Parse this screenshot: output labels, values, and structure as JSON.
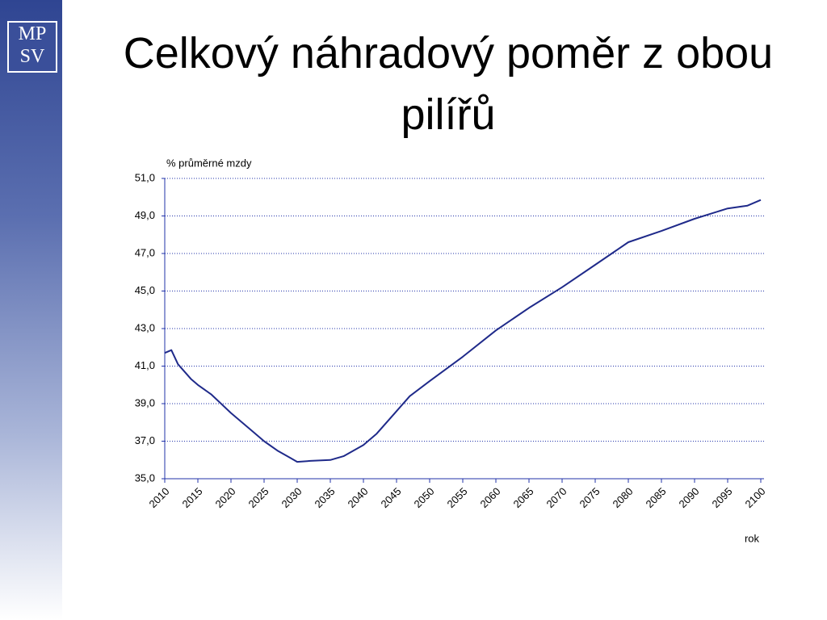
{
  "logo": {
    "top": "MP",
    "bottom": "SV"
  },
  "chart_data": {
    "type": "line",
    "title": "Celkový náhradový poměr z obou pilířů",
    "y_label": "% průměrné mzdy",
    "x_label": "rok",
    "x": [
      2010,
      2011,
      2012,
      2014,
      2015,
      2017,
      2020,
      2023,
      2025,
      2027,
      2029,
      2030,
      2032,
      2035,
      2037,
      2040,
      2042,
      2045,
      2047,
      2050,
      2055,
      2060,
      2065,
      2070,
      2075,
      2080,
      2085,
      2090,
      2095,
      2098,
      2100
    ],
    "values": [
      41.7,
      41.85,
      41.1,
      40.3,
      40.0,
      39.5,
      38.5,
      37.6,
      37.0,
      36.5,
      36.1,
      35.9,
      35.95,
      36.0,
      36.2,
      36.8,
      37.4,
      38.6,
      39.4,
      40.2,
      41.5,
      42.9,
      44.1,
      45.2,
      46.4,
      47.6,
      48.2,
      48.85,
      49.4,
      49.55,
      49.85
    ],
    "color": "#1f2a8a",
    "xlim": [
      2010,
      2100
    ],
    "xticks": [
      2010,
      2015,
      2020,
      2025,
      2030,
      2035,
      2040,
      2045,
      2050,
      2055,
      2060,
      2065,
      2070,
      2075,
      2080,
      2085,
      2090,
      2095,
      2100
    ],
    "ylim": [
      35,
      51
    ],
    "yticks": [
      {
        "value": 35,
        "label": "35,0"
      },
      {
        "value": 37,
        "label": "37,0"
      },
      {
        "value": 39,
        "label": "39,0"
      },
      {
        "value": 41,
        "label": "41,0"
      },
      {
        "value": 43,
        "label": "43,0"
      },
      {
        "value": 45,
        "label": "45,0"
      },
      {
        "value": 47,
        "label": "47,0"
      },
      {
        "value": 49,
        "label": "49,0"
      },
      {
        "value": 51,
        "label": "51,0"
      }
    ],
    "grid": true
  }
}
